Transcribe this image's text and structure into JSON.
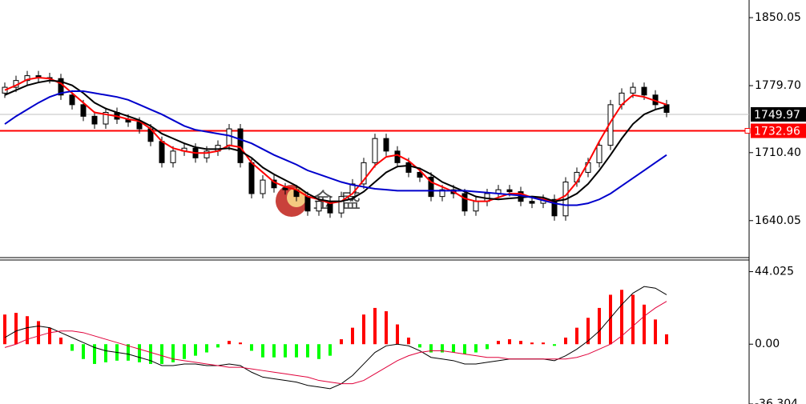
{
  "chart_data": [
    {
      "type": "candlestick",
      "open": [
        1772,
        1778,
        1785,
        1790,
        1788,
        1787,
        1770,
        1760,
        1748,
        1740,
        1752,
        1745,
        1742,
        1735,
        1722,
        1700,
        1712,
        1715,
        1705,
        1712,
        1718,
        1735,
        1700,
        1668,
        1682,
        1674,
        1672,
        1665,
        1650,
        1660,
        1648,
        1665,
        1678,
        1700,
        1725,
        1712,
        1700,
        1690,
        1685,
        1665,
        1672,
        1668,
        1650,
        1660,
        1668,
        1672,
        1670,
        1660,
        1658,
        1662,
        1645,
        1680,
        1690,
        1700,
        1718,
        1760,
        1772,
        1778,
        1770,
        1760
      ],
      "high": [
        1783,
        1790,
        1795,
        1795,
        1793,
        1792,
        1775,
        1765,
        1753,
        1757,
        1757,
        1750,
        1747,
        1740,
        1727,
        1717,
        1720,
        1720,
        1717,
        1723,
        1740,
        1740,
        1705,
        1687,
        1687,
        1679,
        1677,
        1670,
        1665,
        1665,
        1670,
        1683,
        1705,
        1730,
        1730,
        1717,
        1705,
        1695,
        1690,
        1677,
        1677,
        1673,
        1665,
        1673,
        1677,
        1677,
        1675,
        1665,
        1667,
        1667,
        1685,
        1695,
        1705,
        1723,
        1765,
        1777,
        1783,
        1783,
        1775,
        1765
      ],
      "low": [
        1767,
        1773,
        1780,
        1783,
        1782,
        1765,
        1755,
        1743,
        1735,
        1735,
        1740,
        1737,
        1730,
        1717,
        1695,
        1695,
        1707,
        1700,
        1700,
        1707,
        1713,
        1695,
        1663,
        1663,
        1669,
        1667,
        1660,
        1645,
        1645,
        1643,
        1643,
        1660,
        1673,
        1695,
        1707,
        1695,
        1685,
        1680,
        1660,
        1660,
        1663,
        1645,
        1645,
        1655,
        1663,
        1665,
        1655,
        1653,
        1653,
        1640,
        1640,
        1675,
        1685,
        1695,
        1713,
        1755,
        1767,
        1765,
        1755,
        1747
      ],
      "close": [
        1778,
        1785,
        1790,
        1788,
        1787,
        1770,
        1760,
        1748,
        1740,
        1752,
        1745,
        1742,
        1735,
        1722,
        1700,
        1712,
        1715,
        1705,
        1712,
        1718,
        1735,
        1700,
        1668,
        1682,
        1674,
        1672,
        1665,
        1650,
        1660,
        1648,
        1665,
        1678,
        1700,
        1725,
        1712,
        1700,
        1690,
        1685,
        1665,
        1672,
        1668,
        1650,
        1660,
        1668,
        1672,
        1670,
        1660,
        1658,
        1662,
        1645,
        1680,
        1690,
        1700,
        1718,
        1760,
        1772,
        1778,
        1770,
        1760,
        1752
      ],
      "overlays": [
        {
          "color": "#ff0000",
          "values": [
            1775,
            1780,
            1786,
            1788,
            1787,
            1782,
            1772,
            1762,
            1752,
            1750,
            1748,
            1745,
            1743,
            1735,
            1722,
            1715,
            1712,
            1710,
            1710,
            1712,
            1718,
            1716,
            1700,
            1690,
            1680,
            1675,
            1672,
            1665,
            1662,
            1658,
            1660,
            1668,
            1682,
            1697,
            1706,
            1708,
            1702,
            1692,
            1680,
            1675,
            1670,
            1663,
            1660,
            1660,
            1664,
            1668,
            1668,
            1664,
            1662,
            1660,
            1666,
            1680,
            1700,
            1722,
            1742,
            1760,
            1770,
            1768,
            1764,
            1760
          ]
        },
        {
          "color": "#000000",
          "values": [
            1770,
            1775,
            1780,
            1783,
            1785,
            1784,
            1780,
            1772,
            1762,
            1756,
            1752,
            1748,
            1744,
            1738,
            1730,
            1725,
            1720,
            1716,
            1714,
            1714,
            1715,
            1712,
            1705,
            1695,
            1688,
            1682,
            1676,
            1668,
            1662,
            1660,
            1660,
            1663,
            1670,
            1680,
            1690,
            1696,
            1697,
            1694,
            1688,
            1680,
            1675,
            1670,
            1665,
            1663,
            1662,
            1663,
            1664,
            1665,
            1664,
            1660,
            1662,
            1668,
            1678,
            1692,
            1708,
            1725,
            1740,
            1750,
            1755,
            1758
          ]
        },
        {
          "color": "#0000cc",
          "values": [
            1740,
            1748,
            1755,
            1762,
            1768,
            1772,
            1774,
            1774,
            1772,
            1770,
            1768,
            1765,
            1760,
            1755,
            1750,
            1744,
            1738,
            1734,
            1732,
            1730,
            1728,
            1724,
            1720,
            1714,
            1708,
            1703,
            1698,
            1692,
            1688,
            1684,
            1680,
            1677,
            1675,
            1673,
            1672,
            1671,
            1671,
            1671,
            1671,
            1671,
            1671,
            1671,
            1670,
            1669,
            1668,
            1667,
            1666,
            1664,
            1661,
            1658,
            1656,
            1656,
            1658,
            1662,
            1668,
            1676,
            1684,
            1692,
            1700,
            1708
          ]
        }
      ],
      "hlines": [
        {
          "value": 1749.97,
          "color": "#c0c0c0",
          "label_bg": "#000000"
        },
        {
          "value": 1732.96,
          "color": "#ff0000",
          "label_bg": "#ff0000"
        }
      ],
      "ylim": [
        1601.8,
        1868.3
      ],
      "yticks": [
        1850.05,
        {
          "value": 1779.7,
          "label": "1779.70"
        },
        {
          "value": 1710.4,
          "label": "1710.40"
        },
        1640.05
      ],
      "watermark": "金 盛"
    },
    {
      "type": "macd",
      "histogram": {
        "up_color": "#ff0000",
        "down_color": "#00ff00",
        "values": [
          18,
          19,
          17,
          14,
          10,
          4,
          -4,
          -9,
          -12,
          -11,
          -10,
          -10,
          -11,
          -12,
          -12,
          -11,
          -9,
          -7,
          -5,
          -2,
          2,
          1,
          -4,
          -8,
          -8,
          -8,
          -8,
          -8,
          -9,
          -7,
          3,
          10,
          18,
          22,
          20,
          12,
          4,
          -2,
          -5,
          -5,
          -5,
          -6,
          -5,
          -3,
          2,
          3,
          2,
          1,
          1,
          -1,
          4,
          10,
          16,
          22,
          30,
          33,
          30,
          24,
          15,
          6
        ]
      },
      "lines": [
        {
          "color": "#000000",
          "values": [
            4,
            8,
            10,
            11,
            10,
            7,
            4,
            1,
            -2,
            -4,
            -5,
            -6,
            -8,
            -10,
            -13,
            -13,
            -12,
            -12,
            -13,
            -13,
            -12,
            -13,
            -17,
            -20,
            -21,
            -22,
            -23,
            -25,
            -26,
            -27,
            -24,
            -19,
            -12,
            -5,
            -1,
            0,
            -1,
            -4,
            -8,
            -9,
            -10,
            -12,
            -12,
            -11,
            -10,
            -9,
            -9,
            -9,
            -9,
            -10,
            -7,
            -3,
            2,
            8,
            16,
            24,
            31,
            35,
            34,
            30
          ]
        },
        {
          "color": "#e0003a",
          "values": [
            -2,
            0,
            3,
            5,
            7,
            8,
            8,
            7,
            5,
            3,
            1,
            -1,
            -3,
            -5,
            -7,
            -9,
            -10,
            -11,
            -12,
            -13,
            -14,
            -14,
            -15,
            -16,
            -17,
            -18,
            -19,
            -20,
            -22,
            -23,
            -24,
            -24,
            -22,
            -18,
            -14,
            -10,
            -7,
            -5,
            -4,
            -4,
            -5,
            -6,
            -7,
            -8,
            -8,
            -9,
            -9,
            -9,
            -9,
            -9,
            -9,
            -8,
            -6,
            -3,
            0,
            5,
            11,
            17,
            22,
            26
          ]
        }
      ],
      "ylim": [
        -36.304,
        51.1
      ],
      "yticks": [
        44.025,
        {
          "value": 0,
          "label": "0.00"
        },
        -36.304
      ]
    }
  ]
}
